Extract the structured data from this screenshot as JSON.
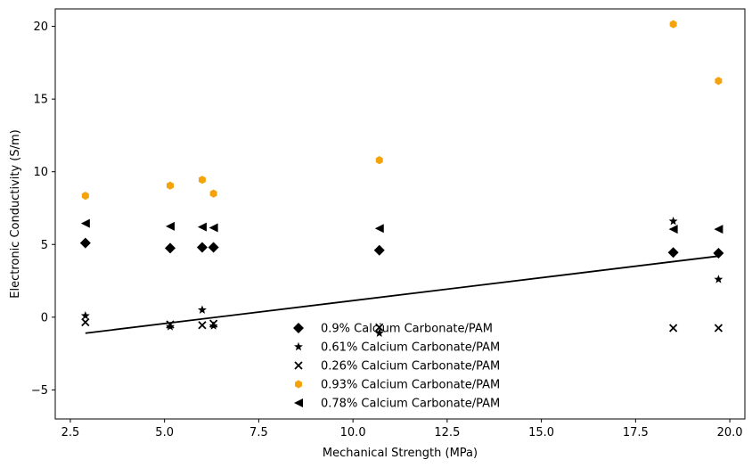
{
  "chart_data": {
    "type": "scatter",
    "title": "",
    "xlabel": "Mechanical Strength (MPa)",
    "ylabel": "Electronic Conductivity (S/m)",
    "xlim": [
      2.1,
      20.4
    ],
    "ylim": [
      -7.0,
      21.2
    ],
    "xticks": [
      2.5,
      5.0,
      7.5,
      10.0,
      12.5,
      15.0,
      17.5,
      20.0
    ],
    "xtick_labels": [
      "2.5",
      "5.0",
      "7.5",
      "10.0",
      "12.5",
      "15.0",
      "17.5",
      "20.0"
    ],
    "yticks": [
      -5,
      0,
      5,
      10,
      15,
      20
    ],
    "ytick_labels": [
      "−5",
      "0",
      "5",
      "10",
      "15",
      "20"
    ],
    "grid": false,
    "legend_position": "bottom-center",
    "x": [
      2.9,
      5.15,
      6.0,
      6.3,
      10.7,
      18.5,
      19.7
    ],
    "series": [
      {
        "name": "0.9% Calcium Carbonate/PAM",
        "marker": "diamond",
        "color": "#000000",
        "values": [
          5.1,
          4.75,
          4.8,
          4.8,
          4.6,
          4.45,
          4.4
        ]
      },
      {
        "name": "0.61% Calcium Carbonate/PAM",
        "marker": "star",
        "color": "#000000",
        "values": [
          0.1,
          -0.65,
          0.5,
          -0.6,
          -1.1,
          6.6,
          2.6
        ]
      },
      {
        "name": "0.26% Calcium Carbonate/PAM",
        "marker": "x",
        "color": "#000000",
        "values": [
          -0.35,
          -0.5,
          -0.55,
          -0.45,
          -0.7,
          -0.75,
          -0.75
        ]
      },
      {
        "name": "0.93% Calcium Carbonate/PAM",
        "marker": "hexagon",
        "color": "#f5a30a",
        "values": [
          8.35,
          9.05,
          9.45,
          8.5,
          10.8,
          20.15,
          16.25
        ]
      },
      {
        "name": "0.78% Calcium Carbonate/PAM",
        "marker": "triangle-left",
        "color": "#000000",
        "values": [
          6.45,
          6.25,
          6.2,
          6.15,
          6.1,
          6.05,
          6.05
        ]
      }
    ],
    "trend_line": {
      "x": [
        2.9,
        19.7
      ],
      "y": [
        -1.1,
        4.2
      ],
      "color": "#000000"
    }
  }
}
